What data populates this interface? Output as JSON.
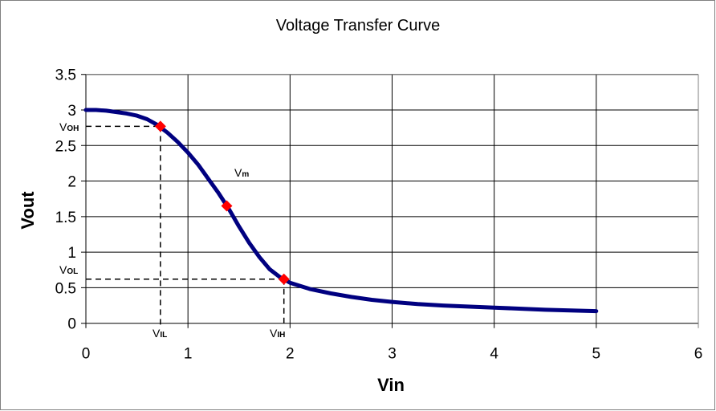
{
  "chart_data": {
    "type": "line",
    "title": "Voltage Transfer Curve",
    "xlabel": "Vin",
    "ylabel": "Vout",
    "xlim": [
      0,
      6
    ],
    "ylim": [
      0,
      3.5
    ],
    "x_ticks": [
      "0",
      "1",
      "2",
      "3",
      "4",
      "5",
      "6"
    ],
    "y_ticks": [
      "0",
      "0.5",
      "1",
      "1.5",
      "2",
      "2.5",
      "3",
      "3.5"
    ],
    "grid": true,
    "series_color": "#000080",
    "marker_color": "#ff0000",
    "series": [
      {
        "x": [
          0,
          0.1,
          0.2,
          0.3,
          0.4,
          0.5,
          0.6,
          0.7,
          0.8,
          0.9,
          1.0,
          1.1,
          1.2,
          1.3,
          1.4,
          1.5,
          1.6,
          1.7,
          1.8,
          1.9,
          2.0,
          2.2,
          2.4,
          2.6,
          2.8,
          3.0,
          3.25,
          3.5,
          4.0,
          4.5,
          5.0
        ],
        "y": [
          3.0,
          3.0,
          2.99,
          2.97,
          2.95,
          2.92,
          2.87,
          2.79,
          2.68,
          2.55,
          2.4,
          2.23,
          2.03,
          1.83,
          1.61,
          1.36,
          1.13,
          0.93,
          0.76,
          0.65,
          0.57,
          0.48,
          0.42,
          0.37,
          0.33,
          0.3,
          0.27,
          0.25,
          0.22,
          0.19,
          0.17
        ]
      }
    ],
    "points": [
      {
        "name": "VIL-VOH",
        "x": 0.73,
        "y": 2.77
      },
      {
        "name": "Vm",
        "x": 1.38,
        "y": 1.65
      },
      {
        "name": "VIH-VOL",
        "x": 1.94,
        "y": 0.62
      }
    ],
    "annotations": {
      "voh": {
        "main": "V",
        "sub": "OH"
      },
      "vol": {
        "main": "V",
        "sub": "OL"
      },
      "vil": {
        "main": "V",
        "sub": "IL"
      },
      "vih": {
        "main": "V",
        "sub": "IH"
      },
      "vm": {
        "main": "V",
        "sub": "m"
      }
    }
  }
}
